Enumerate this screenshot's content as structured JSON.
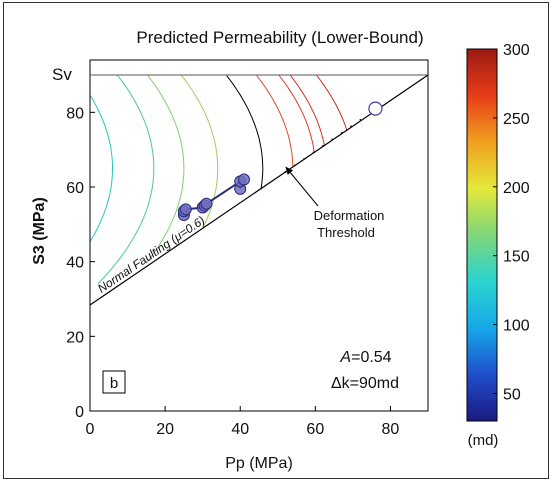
{
  "chart_data": {
    "type": "contour",
    "title": "Predicted Permeability (Lower-Bound)",
    "xlabel": "Pp (MPa)",
    "ylabel": "S3 (MPa)",
    "xlim": [
      0,
      90
    ],
    "ylim": [
      0,
      90
    ],
    "xticks": [
      0,
      20,
      40,
      60,
      80
    ],
    "yticks": [
      0,
      20,
      40,
      60,
      80
    ],
    "sv_label": "Sv",
    "sv_value": 90,
    "panel_label": "b",
    "annotation_A": "A=0.54",
    "annotation_dk": "Δk=90md",
    "faulting_label": "Normal Faulting (μ=0.6)",
    "faulting_line": {
      "x": [
        0,
        90
      ],
      "y": [
        28.4,
        90
      ]
    },
    "threshold_label_line1": "Deformation",
    "threshold_label_line2": "Threshold",
    "threshold_arrow_target": {
      "x": 52,
      "y": 65.5
    },
    "data_points": [
      {
        "x": 25,
        "y": 52.5
      },
      {
        "x": 25,
        "y": 53.5
      },
      {
        "x": 25.5,
        "y": 54
      },
      {
        "x": 30,
        "y": 54.5
      },
      {
        "x": 30.5,
        "y": 55
      },
      {
        "x": 31,
        "y": 55.5
      },
      {
        "x": 40,
        "y": 59.5
      },
      {
        "x": 40,
        "y": 61.5
      },
      {
        "x": 41,
        "y": 62
      }
    ],
    "data_point_links": [
      [
        0,
        1
      ],
      [
        1,
        2
      ],
      [
        2,
        3
      ],
      [
        3,
        4
      ],
      [
        4,
        5
      ],
      [
        5,
        7
      ],
      [
        7,
        8
      ],
      [
        6,
        7
      ]
    ],
    "open_point": {
      "x": 76,
      "y": 81
    },
    "contour_vertex_x": [
      -12,
      -5,
      6,
      17,
      25,
      34,
      46,
      54,
      60,
      63,
      70
    ],
    "contour_colors": [
      "#2aaee0",
      "#1cc0d8",
      "#26c8b8",
      "#4cc890",
      "#80d070",
      "#9ed060",
      "#000000",
      "#e04828",
      "#e03a22",
      "#d83020",
      "#c82a1c"
    ],
    "dotted_threshold": {
      "x": [
        52,
        72
      ],
      "y": [
        64,
        78
      ]
    },
    "colorbar": {
      "unit_label": "(md)",
      "min": 30,
      "max": 300,
      "ticks": [
        50,
        100,
        150,
        200,
        250,
        300
      ],
      "stops": [
        "#1a1a80",
        "#1f4ecc",
        "#17a8e8",
        "#2ad4d0",
        "#7ed67a",
        "#e4e83a",
        "#f0a020",
        "#e83c18",
        "#9c1a12"
      ]
    }
  }
}
